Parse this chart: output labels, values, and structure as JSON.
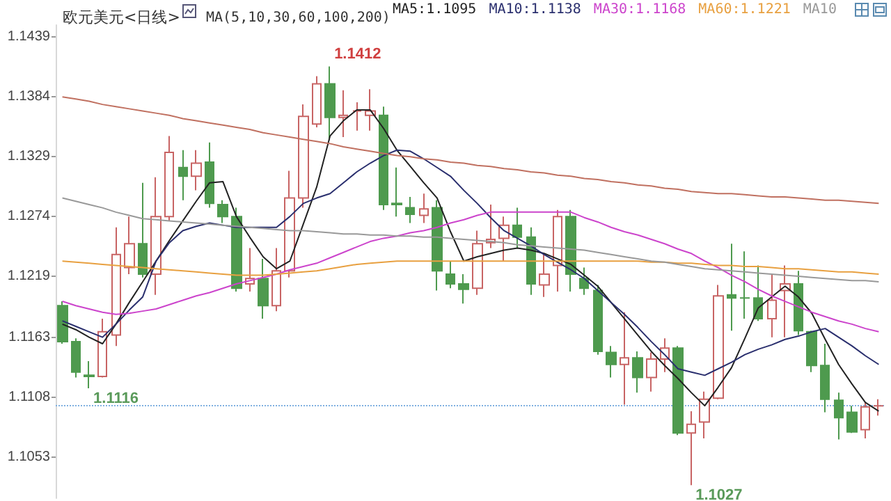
{
  "chart_data": {
    "type": "candlestick",
    "title": "欧元美元<日线>",
    "subtitle": "MA(5,10,30,60,100,200)",
    "categories": [
      null,
      null,
      null,
      null,
      null,
      null,
      null,
      null,
      null,
      null,
      null,
      null,
      null,
      null,
      null,
      null,
      null,
      null,
      null,
      null,
      null,
      null,
      null,
      null,
      null,
      null,
      null,
      null,
      null,
      null,
      null,
      null,
      null,
      null,
      null,
      null,
      null,
      null,
      null,
      null,
      null,
      null,
      null,
      null,
      null,
      null,
      null,
      null,
      null,
      null,
      null,
      null,
      null,
      null,
      null,
      null,
      null,
      null,
      null,
      null,
      null,
      null
    ],
    "ohlc": [
      [
        1.1192,
        1.1196,
        1.1157,
        1.1159
      ],
      [
        1.1159,
        1.1162,
        1.1126,
        1.1131
      ],
      [
        1.1128,
        1.1141,
        1.1116,
        1.1127
      ],
      [
        1.1127,
        1.118,
        1.1126,
        1.1168
      ],
      [
        1.1165,
        1.1264,
        1.1155,
        1.1239
      ],
      [
        1.1227,
        1.1274,
        1.1221,
        1.1249
      ],
      [
        1.1249,
        1.1305,
        1.1218,
        1.1221
      ],
      [
        1.1221,
        1.131,
        1.1202,
        1.1274
      ],
      [
        1.1274,
        1.1348,
        1.127,
        1.1333
      ],
      [
        1.1319,
        1.1335,
        1.1289,
        1.1311
      ],
      [
        1.1311,
        1.1335,
        1.1298,
        1.1323
      ],
      [
        1.1324,
        1.1342,
        1.1282,
        1.1286
      ],
      [
        1.1285,
        1.1289,
        1.1268,
        1.1274
      ],
      [
        1.1274,
        1.1282,
        1.1205,
        1.1208
      ],
      [
        1.1212,
        1.1245,
        1.1205,
        1.1217
      ],
      [
        1.1217,
        1.1235,
        1.118,
        1.1192
      ],
      [
        1.1192,
        1.1245,
        1.1187,
        1.1224
      ],
      [
        1.1224,
        1.1316,
        1.1218,
        1.1291
      ],
      [
        1.1291,
        1.1377,
        1.1282,
        1.1366
      ],
      [
        1.1359,
        1.1403,
        1.1356,
        1.1396
      ],
      [
        1.1396,
        1.1412,
        1.1344,
        1.1365
      ],
      [
        1.1365,
        1.139,
        1.1347,
        1.1367
      ],
      [
        1.1371,
        1.1379,
        1.1353,
        1.1371
      ],
      [
        1.1367,
        1.1391,
        1.1353,
        1.1371
      ],
      [
        1.1367,
        1.1375,
        1.128,
        1.1285
      ],
      [
        1.1286,
        1.1319,
        1.1274,
        1.1285
      ],
      [
        1.1282,
        1.1292,
        1.1268,
        1.1276
      ],
      [
        1.1275,
        1.1295,
        1.1268,
        1.1281
      ],
      [
        1.1282,
        1.1289,
        1.1206,
        1.1224
      ],
      [
        1.1221,
        1.1233,
        1.1208,
        1.1212
      ],
      [
        1.1212,
        1.1221,
        1.1194,
        1.1207
      ],
      [
        1.1208,
        1.1261,
        1.1202,
        1.1249
      ],
      [
        1.125,
        1.1285,
        1.1245,
        1.1253
      ],
      [
        1.1254,
        1.1274,
        1.1233,
        1.1266
      ],
      [
        1.1266,
        1.1282,
        1.1245,
        1.1255
      ],
      [
        1.1255,
        1.1264,
        1.1202,
        1.1212
      ],
      [
        1.1211,
        1.1239,
        1.12,
        1.1221
      ],
      [
        1.1229,
        1.128,
        1.1205,
        1.1274
      ],
      [
        1.1274,
        1.128,
        1.1205,
        1.1221
      ],
      [
        1.1217,
        1.1227,
        1.1202,
        1.1208
      ],
      [
        1.1206,
        1.1211,
        1.1147,
        1.115
      ],
      [
        1.1149,
        1.1155,
        1.1126,
        1.1138
      ],
      [
        1.1138,
        1.1186,
        1.1101,
        1.1144
      ],
      [
        1.1144,
        1.115,
        1.1112,
        1.1126
      ],
      [
        1.1126,
        1.1149,
        1.1113,
        1.1143
      ],
      [
        1.1143,
        1.1162,
        1.1131,
        1.1153
      ],
      [
        1.1153,
        1.1155,
        1.1073,
        1.1075
      ],
      [
        1.1075,
        1.1095,
        1.1027,
        1.1083
      ],
      [
        1.1085,
        1.1113,
        1.107,
        1.1106
      ],
      [
        1.1107,
        1.1211,
        1.1106,
        1.1201
      ],
      [
        1.1202,
        1.1249,
        1.1169,
        1.1199
      ],
      [
        1.1199,
        1.1242,
        1.118,
        1.1199
      ],
      [
        1.1199,
        1.1229,
        1.1178,
        1.118
      ],
      [
        1.118,
        1.1221,
        1.1163,
        1.1197
      ],
      [
        1.1206,
        1.1229,
        1.1163,
        1.1212
      ],
      [
        1.1212,
        1.1224,
        1.1165,
        1.1169
      ],
      [
        1.1168,
        1.1169,
        1.1131,
        1.1137
      ],
      [
        1.1137,
        1.1157,
        1.1094,
        1.1106
      ],
      [
        1.1105,
        1.1112,
        1.1069,
        1.1089
      ],
      [
        1.1094,
        1.11,
        1.1075,
        1.1076
      ],
      [
        1.1078,
        1.1103,
        1.107,
        1.1099
      ],
      [
        1.11,
        1.1106,
        1.1091,
        1.11
      ]
    ],
    "colors": [
      "#4e9a4e",
      "#4e9a4e",
      "#4e9a4e",
      "#c86464",
      "#c86464",
      "#c86464",
      "#4e9a4e",
      "#c86464",
      "#c86464",
      "#4e9a4e",
      "#c86464",
      "#4e9a4e",
      "#4e9a4e",
      "#4e9a4e",
      "#c86464",
      "#4e9a4e",
      "#c86464",
      "#c86464",
      "#c86464",
      "#c86464",
      "#4e9a4e",
      "#c86464",
      "#c86464",
      "#c86464",
      "#4e9a4e",
      "#4e9a4e",
      "#4e9a4e",
      "#c86464",
      "#4e9a4e",
      "#4e9a4e",
      "#4e9a4e",
      "#c86464",
      "#c86464",
      "#c86464",
      "#4e9a4e",
      "#4e9a4e",
      "#c86464",
      "#c86464",
      "#4e9a4e",
      "#4e9a4e",
      "#4e9a4e",
      "#4e9a4e",
      "#c86464",
      "#4e9a4e",
      "#c86464",
      "#c86464",
      "#4e9a4e",
      "#c86464",
      "#c86464",
      "#c86464",
      "#4e9a4e",
      "#4e9a4e",
      "#4e9a4e",
      "#c86464",
      "#c86464",
      "#4e9a4e",
      "#4e9a4e",
      "#4e9a4e",
      "#4e9a4e",
      "#4e9a4e",
      "#c86464",
      "#c86464"
    ],
    "series": [
      {
        "type": "line",
        "name": "MA5:1.1095",
        "color": "#222222",
        "values": [
          1.1175,
          1.117,
          1.1163,
          1.1157,
          1.1175,
          1.1195,
          1.1214,
          1.1233,
          1.1252,
          1.127,
          1.1288,
          1.1305,
          1.1306,
          1.1274,
          1.1255,
          1.1237,
          1.1226,
          1.1233,
          1.1267,
          1.1301,
          1.1348,
          1.1362,
          1.1372,
          1.1372,
          1.1355,
          1.1335,
          1.132,
          1.1305,
          1.1291,
          1.126,
          1.1233,
          1.1237,
          1.124,
          1.1243,
          1.1245,
          1.1243,
          1.124,
          1.1235,
          1.123,
          1.122,
          1.121,
          1.1195,
          1.118,
          1.1165,
          1.115,
          1.1137,
          1.1125,
          1.1112,
          1.11,
          1.1117,
          1.1135,
          1.1162,
          1.119,
          1.12,
          1.121,
          1.12,
          1.1185,
          1.1161,
          1.1138,
          1.112,
          1.1103,
          1.1095
        ]
      },
      {
        "type": "line",
        "name": "MA10:1.1138",
        "color": "#2a2f6e",
        "values": [
          1.1178,
          1.1173,
          1.1168,
          1.1163,
          1.1175,
          1.1188,
          1.12,
          1.1233,
          1.125,
          1.1261,
          1.1265,
          1.1268,
          1.1266,
          1.1264,
          1.1264,
          1.1264,
          1.1264,
          1.1274,
          1.1286,
          1.1291,
          1.1295,
          1.1305,
          1.1315,
          1.1323,
          1.133,
          1.1335,
          1.1334,
          1.1327,
          1.1319,
          1.1311,
          1.1298,
          1.1286,
          1.1273,
          1.1261,
          1.1254,
          1.1247,
          1.1239,
          1.1232,
          1.1225,
          1.1217,
          1.1206,
          1.1195,
          1.1184,
          1.1172,
          1.1159,
          1.1147,
          1.1134,
          1.1131,
          1.1128,
          1.1134,
          1.114,
          1.1147,
          1.1152,
          1.1156,
          1.1161,
          1.1164,
          1.1168,
          1.1171,
          1.1163,
          1.1155,
          1.1146,
          1.1138
        ]
      },
      {
        "type": "line",
        "name": "MA30:1.1168",
        "color": "#cc44cc",
        "values": [
          1.1196,
          1.1192,
          1.1189,
          1.1186,
          1.1184,
          1.1185,
          1.1187,
          1.1189,
          1.1193,
          1.1197,
          1.1201,
          1.1204,
          1.1208,
          1.1212,
          1.1215,
          1.1218,
          1.1221,
          1.1225,
          1.1228,
          1.1231,
          1.1236,
          1.1241,
          1.1246,
          1.1251,
          1.1254,
          1.1256,
          1.1259,
          1.1261,
          1.1264,
          1.1268,
          1.1271,
          1.1275,
          1.1278,
          1.1278,
          1.1278,
          1.1278,
          1.1278,
          1.1278,
          1.1278,
          1.1273,
          1.1269,
          1.1264,
          1.126,
          1.1257,
          1.1253,
          1.1249,
          1.1244,
          1.124,
          1.1233,
          1.1227,
          1.122,
          1.1214,
          1.1207,
          1.1201,
          1.1196,
          1.1191,
          1.1186,
          1.1182,
          1.1178,
          1.1175,
          1.1171,
          1.1168
        ]
      },
      {
        "type": "line",
        "name": "MA60:1.1221",
        "color": "#e8a040",
        "values": [
          1.1233,
          1.1232,
          1.1231,
          1.123,
          1.1229,
          1.1228,
          1.1227,
          1.1226,
          1.1225,
          1.1224,
          1.1223,
          1.1222,
          1.1221,
          1.122,
          1.122,
          1.122,
          1.1221,
          1.1222,
          1.1223,
          1.1224,
          1.1226,
          1.1228,
          1.123,
          1.1231,
          1.1232,
          1.1233,
          1.1233,
          1.1233,
          1.1233,
          1.1233,
          1.1233,
          1.1233,
          1.1233,
          1.1233,
          1.1233,
          1.1233,
          1.1233,
          1.1233,
          1.1233,
          1.1233,
          1.1233,
          1.1233,
          1.1233,
          1.1233,
          1.1232,
          1.1232,
          1.1231,
          1.1231,
          1.123,
          1.1229,
          1.1229,
          1.1228,
          1.1228,
          1.1227,
          1.1226,
          1.1226,
          1.1225,
          1.1224,
          1.1223,
          1.1223,
          1.1222,
          1.1221
        ]
      },
      {
        "type": "line",
        "name": "MA10",
        "color": "#999999",
        "values": [
          1.1291,
          1.1288,
          1.1285,
          1.1282,
          1.1278,
          1.1275,
          1.1272,
          1.1271,
          1.127,
          1.1269,
          1.1268,
          1.1267,
          1.1266,
          1.1265,
          1.1264,
          1.1263,
          1.1262,
          1.1261,
          1.1261,
          1.126,
          1.1259,
          1.1258,
          1.1258,
          1.1257,
          1.1257,
          1.1256,
          1.1256,
          1.1255,
          1.1255,
          1.1254,
          1.1253,
          1.1252,
          1.1251,
          1.125,
          1.1248,
          1.1247,
          1.1246,
          1.1245,
          1.1244,
          1.1243,
          1.1241,
          1.1239,
          1.1237,
          1.1235,
          1.1233,
          1.1232,
          1.123,
          1.1228,
          1.1226,
          1.1225,
          1.1224,
          1.1223,
          1.1222,
          1.1221,
          1.122,
          1.1219,
          1.1218,
          1.1217,
          1.1216,
          1.1215,
          1.1215,
          1.1214
        ]
      },
      {
        "type": "line",
        "color": "#c07060",
        "values": [
          1.1384,
          1.1382,
          1.138,
          1.1377,
          1.1375,
          1.1373,
          1.1371,
          1.1369,
          1.1367,
          1.1364,
          1.1362,
          1.136,
          1.1358,
          1.1356,
          1.1354,
          1.1351,
          1.1349,
          1.1347,
          1.1345,
          1.1343,
          1.1341,
          1.1338,
          1.1336,
          1.1334,
          1.1332,
          1.133,
          1.1329,
          1.1327,
          1.1326,
          1.1324,
          1.1323,
          1.1321,
          1.132,
          1.1318,
          1.1317,
          1.1315,
          1.1314,
          1.1312,
          1.1311,
          1.1309,
          1.1308,
          1.1306,
          1.1305,
          1.1303,
          1.1302,
          1.13,
          1.1299,
          1.1297,
          1.1296,
          1.1295,
          1.1295,
          1.1294,
          1.1293,
          1.1292,
          1.1292,
          1.1291,
          1.129,
          1.1289,
          1.1289,
          1.1288,
          1.1287,
          1.1286
        ]
      }
    ],
    "ylim": [
      1.1015,
      1.145
    ],
    "yticks": [
      1.1053,
      1.1108,
      1.1163,
      1.1219,
      1.1274,
      1.1329,
      1.1384,
      1.1439
    ],
    "ref_lines": [
      {
        "axis": "y",
        "value": 1.11,
        "color": "#7fb0e0",
        "line_style": "dotted"
      }
    ],
    "annotations": [
      "1.1412",
      "1.1116",
      "1.1027"
    ],
    "legend": "top",
    "grid": false,
    "marker": "none",
    "line_style": "solid",
    "tick_labels": "y"
  }
}
